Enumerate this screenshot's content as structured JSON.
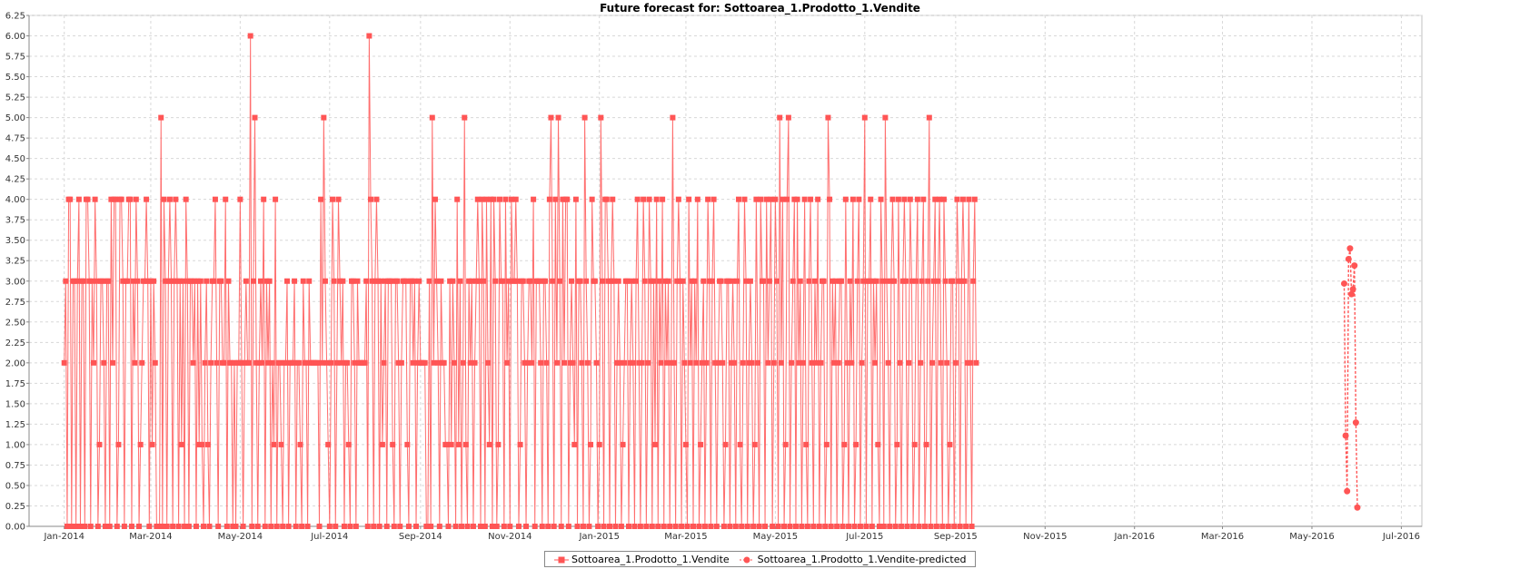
{
  "chart_data": {
    "type": "line",
    "title": "Future forecast for: Sottoarea_1.Prodotto_1.Vendite",
    "xlabel": "",
    "ylabel": "",
    "ylim": [
      0,
      6.25
    ],
    "y_ticks": [
      "0.00",
      "0.25",
      "0.50",
      "0.75",
      "1.00",
      "1.25",
      "1.50",
      "1.75",
      "2.00",
      "2.25",
      "2.50",
      "2.75",
      "3.00",
      "3.25",
      "3.50",
      "3.75",
      "4.00",
      "4.25",
      "4.50",
      "4.75",
      "5.00",
      "5.25",
      "5.50",
      "5.75",
      "6.00",
      "6.25"
    ],
    "xlim": [
      "2013-12-08",
      "2016-07-15"
    ],
    "x_ticks": [
      {
        "label": "Jan-2014",
        "date": "2014-01-01"
      },
      {
        "label": "Mar-2014",
        "date": "2014-03-01"
      },
      {
        "label": "May-2014",
        "date": "2014-05-01"
      },
      {
        "label": "Jul-2014",
        "date": "2014-07-01"
      },
      {
        "label": "Sep-2014",
        "date": "2014-09-01"
      },
      {
        "label": "Nov-2014",
        "date": "2014-11-01"
      },
      {
        "label": "Jan-2015",
        "date": "2015-01-01"
      },
      {
        "label": "Mar-2015",
        "date": "2015-03-01"
      },
      {
        "label": "May-2015",
        "date": "2015-05-01"
      },
      {
        "label": "Jul-2015",
        "date": "2015-07-01"
      },
      {
        "label": "Sep-2015",
        "date": "2015-09-01"
      },
      {
        "label": "Nov-2015",
        "date": "2015-11-01"
      },
      {
        "label": "Jan-2016",
        "date": "2016-01-01"
      },
      {
        "label": "Mar-2016",
        "date": "2016-03-01"
      },
      {
        "label": "May-2016",
        "date": "2016-05-01"
      },
      {
        "label": "Jul-2016",
        "date": "2016-07-01"
      }
    ],
    "grid": true,
    "legend_position": "bottom-center",
    "series": [
      {
        "name": "Sottoarea_1.Prodotto_1.Vendite",
        "color": "#ff5555",
        "marker": "square",
        "x_start": "2014-01-01",
        "x_step_days": 1,
        "values": [
          2,
          3,
          0,
          4,
          4,
          0,
          3,
          3,
          0,
          3,
          4,
          0,
          3,
          3,
          0,
          4,
          4,
          3,
          0,
          3,
          2,
          4,
          3,
          0,
          1,
          3,
          3,
          2,
          0,
          3,
          3,
          0,
          4,
          2,
          4,
          4,
          0,
          1,
          4,
          4,
          3,
          0,
          3,
          3,
          4,
          4,
          0,
          3,
          2,
          4,
          3,
          0,
          1,
          2,
          3,
          3,
          4,
          3,
          0,
          3,
          1,
          3,
          2,
          0,
          0,
          0,
          5,
          0,
          4,
          3,
          0,
          3,
          4,
          3,
          0,
          3,
          4,
          3,
          0,
          3,
          1,
          3,
          0,
          4,
          3,
          0,
          3,
          3,
          2,
          3,
          0,
          3,
          1,
          3,
          1,
          0,
          2,
          3,
          1,
          0,
          2,
          3,
          3,
          4,
          2,
          0,
          3,
          3,
          2,
          2,
          4,
          0,
          3,
          2,
          2,
          0,
          2,
          0,
          2,
          2,
          4,
          2,
          0,
          2,
          3,
          2,
          2,
          6,
          0,
          3,
          5,
          2,
          0,
          2,
          3,
          2,
          4,
          0,
          3,
          2,
          3,
          0,
          2,
          1,
          4,
          0,
          2,
          2,
          1,
          0,
          2,
          2,
          3,
          0,
          2,
          2,
          2,
          3,
          0,
          2,
          2,
          1,
          0,
          3,
          2,
          2,
          0,
          3,
          2,
          2,
          2,
          2,
          2,
          2,
          0,
          4,
          2,
          5,
          3,
          2,
          1,
          0,
          2,
          4,
          3,
          0,
          2,
          4,
          3,
          2,
          3,
          0,
          2,
          2,
          1,
          0,
          3,
          3,
          2,
          0,
          3,
          2,
          2,
          2,
          2,
          2,
          3,
          0,
          6,
          4,
          3,
          0,
          3,
          4,
          3,
          0,
          3,
          1,
          2,
          3,
          0,
          3,
          3,
          3,
          1,
          0,
          3,
          3,
          2,
          0,
          2,
          3,
          3,
          3,
          1,
          0,
          3,
          3,
          2,
          3,
          0,
          2,
          3,
          2,
          2,
          2,
          2,
          0,
          0,
          3,
          0,
          5,
          2,
          4,
          3,
          2,
          0,
          3,
          2,
          2,
          1,
          1,
          0,
          3,
          1,
          3,
          2,
          0,
          4,
          1,
          3,
          0,
          2,
          5,
          1,
          0,
          3,
          2,
          3,
          0,
          2,
          3,
          4,
          3,
          0,
          4,
          3,
          0,
          4,
          2,
          1,
          4,
          0,
          4,
          3,
          0,
          1,
          4,
          3,
          3,
          0,
          4,
          2,
          3,
          0,
          4,
          3,
          3,
          4,
          3,
          0,
          1,
          3,
          3,
          2,
          0,
          2,
          3,
          3,
          2,
          4,
          0,
          3,
          3,
          3,
          2,
          0,
          3,
          3,
          2,
          0,
          4,
          5,
          3,
          0,
          4,
          2,
          5,
          3,
          0,
          4,
          2,
          4,
          4,
          0,
          2,
          3,
          2,
          1,
          4,
          0,
          3,
          3,
          2,
          0,
          5,
          3,
          2,
          0,
          1,
          4,
          3,
          3,
          2,
          0,
          1,
          5,
          3,
          0,
          4,
          4,
          3,
          0,
          3,
          4,
          3,
          0,
          2,
          3,
          2,
          0,
          1,
          2,
          3,
          3,
          0,
          2,
          3,
          2,
          0,
          3,
          4,
          2,
          0,
          2,
          4,
          3,
          0,
          2,
          4,
          3,
          0,
          3,
          1,
          4,
          0,
          3,
          2,
          4,
          0,
          3,
          2,
          3,
          0,
          2,
          5,
          2,
          0,
          3,
          4,
          3,
          0,
          3,
          2,
          1,
          0,
          4,
          2,
          3,
          0,
          3,
          2,
          4,
          0,
          1,
          2,
          3,
          0,
          2,
          4,
          3,
          0,
          3,
          4,
          2,
          0,
          2,
          3,
          3,
          2,
          0,
          1,
          3,
          3,
          0,
          2,
          3,
          2,
          0,
          3,
          4,
          1,
          0,
          2,
          4,
          3,
          0,
          2,
          3,
          2,
          0,
          1,
          4,
          2,
          0,
          4,
          3,
          3,
          0,
          4,
          2,
          3,
          4,
          0,
          2,
          4,
          3,
          0,
          5,
          2,
          4,
          0,
          1,
          4,
          5,
          0,
          2,
          3,
          4,
          0,
          4,
          2,
          3,
          0,
          2,
          4,
          1,
          0,
          3,
          4,
          2,
          0,
          3,
          2,
          4,
          0,
          2,
          3,
          3,
          0,
          1,
          5,
          4,
          0,
          3,
          2,
          3,
          0,
          2,
          3,
          3,
          0,
          1,
          4,
          2,
          0,
          3,
          2,
          4,
          0,
          1,
          3,
          4,
          0,
          2,
          3,
          5,
          0,
          3,
          3,
          4,
          0,
          3,
          2,
          3,
          1,
          0,
          4,
          3,
          0,
          5,
          3,
          2,
          0,
          3,
          4,
          3,
          0,
          1,
          4,
          2,
          0,
          3,
          4,
          3,
          0,
          2,
          4,
          3,
          0,
          1,
          3,
          4,
          0,
          2,
          3,
          4,
          0,
          1,
          3,
          5,
          0,
          2,
          3,
          4,
          0,
          3,
          4,
          2,
          0,
          4,
          3,
          2,
          0,
          1,
          3,
          3,
          0,
          2,
          4,
          3,
          0,
          3,
          4,
          3,
          0,
          2,
          4,
          2,
          0,
          3,
          4,
          2
        ]
      },
      {
        "name": "Sottoarea_1.Prodotto_1.Vendite-predicted",
        "color": "#ff5555",
        "marker": "circle",
        "dashed": true,
        "x": [
          "2016-05-23",
          "2016-05-24",
          "2016-05-25",
          "2016-05-26",
          "2016-05-27",
          "2016-05-28",
          "2016-05-29",
          "2016-05-30",
          "2016-05-31",
          "2016-06-01"
        ],
        "values": [
          2.97,
          1.11,
          0.43,
          3.27,
          3.4,
          2.84,
          2.9,
          3.19,
          1.27,
          0.23
        ]
      }
    ]
  }
}
